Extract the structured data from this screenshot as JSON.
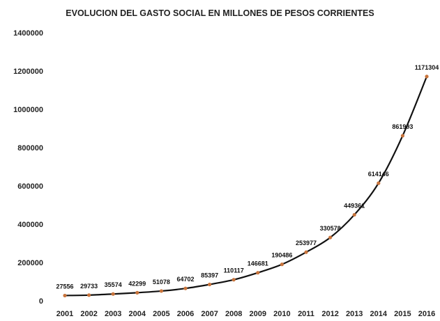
{
  "chart_data": {
    "type": "line",
    "title": "EVOLUCION DEL GASTO SOCIAL EN MILLONES DE PESOS CORRIENTES",
    "xlabel": "",
    "ylabel": "",
    "categories": [
      "2001",
      "2002",
      "2003",
      "2004",
      "2005",
      "2006",
      "2007",
      "2008",
      "2009",
      "2010",
      "2011",
      "2012",
      "2013",
      "2014",
      "2015",
      "2016"
    ],
    "series": [
      {
        "values": [
          27556,
          29733,
          35574,
          42299,
          51078,
          64702,
          85397,
          110117,
          146681,
          190486,
          253977,
          330578,
          449361,
          614146,
          861993,
          1171304
        ]
      }
    ],
    "data_labels": [
      "27556",
      "29733",
      "35574",
      "42299",
      "51078",
      "64702",
      "85397",
      "110117",
      "146681",
      "190486",
      "253977",
      "330578",
      "449361",
      "614146",
      "861993",
      "1171304"
    ],
    "yticks": [
      "0",
      "200000",
      "400000",
      "600000",
      "800000",
      "1000000",
      "1200000",
      "1400000"
    ],
    "ylim": [
      0,
      1400000
    ],
    "grid": false,
    "legend": "none",
    "colors": {
      "line": "#111111",
      "marker": "#c8743c",
      "text": "#222222"
    }
  }
}
